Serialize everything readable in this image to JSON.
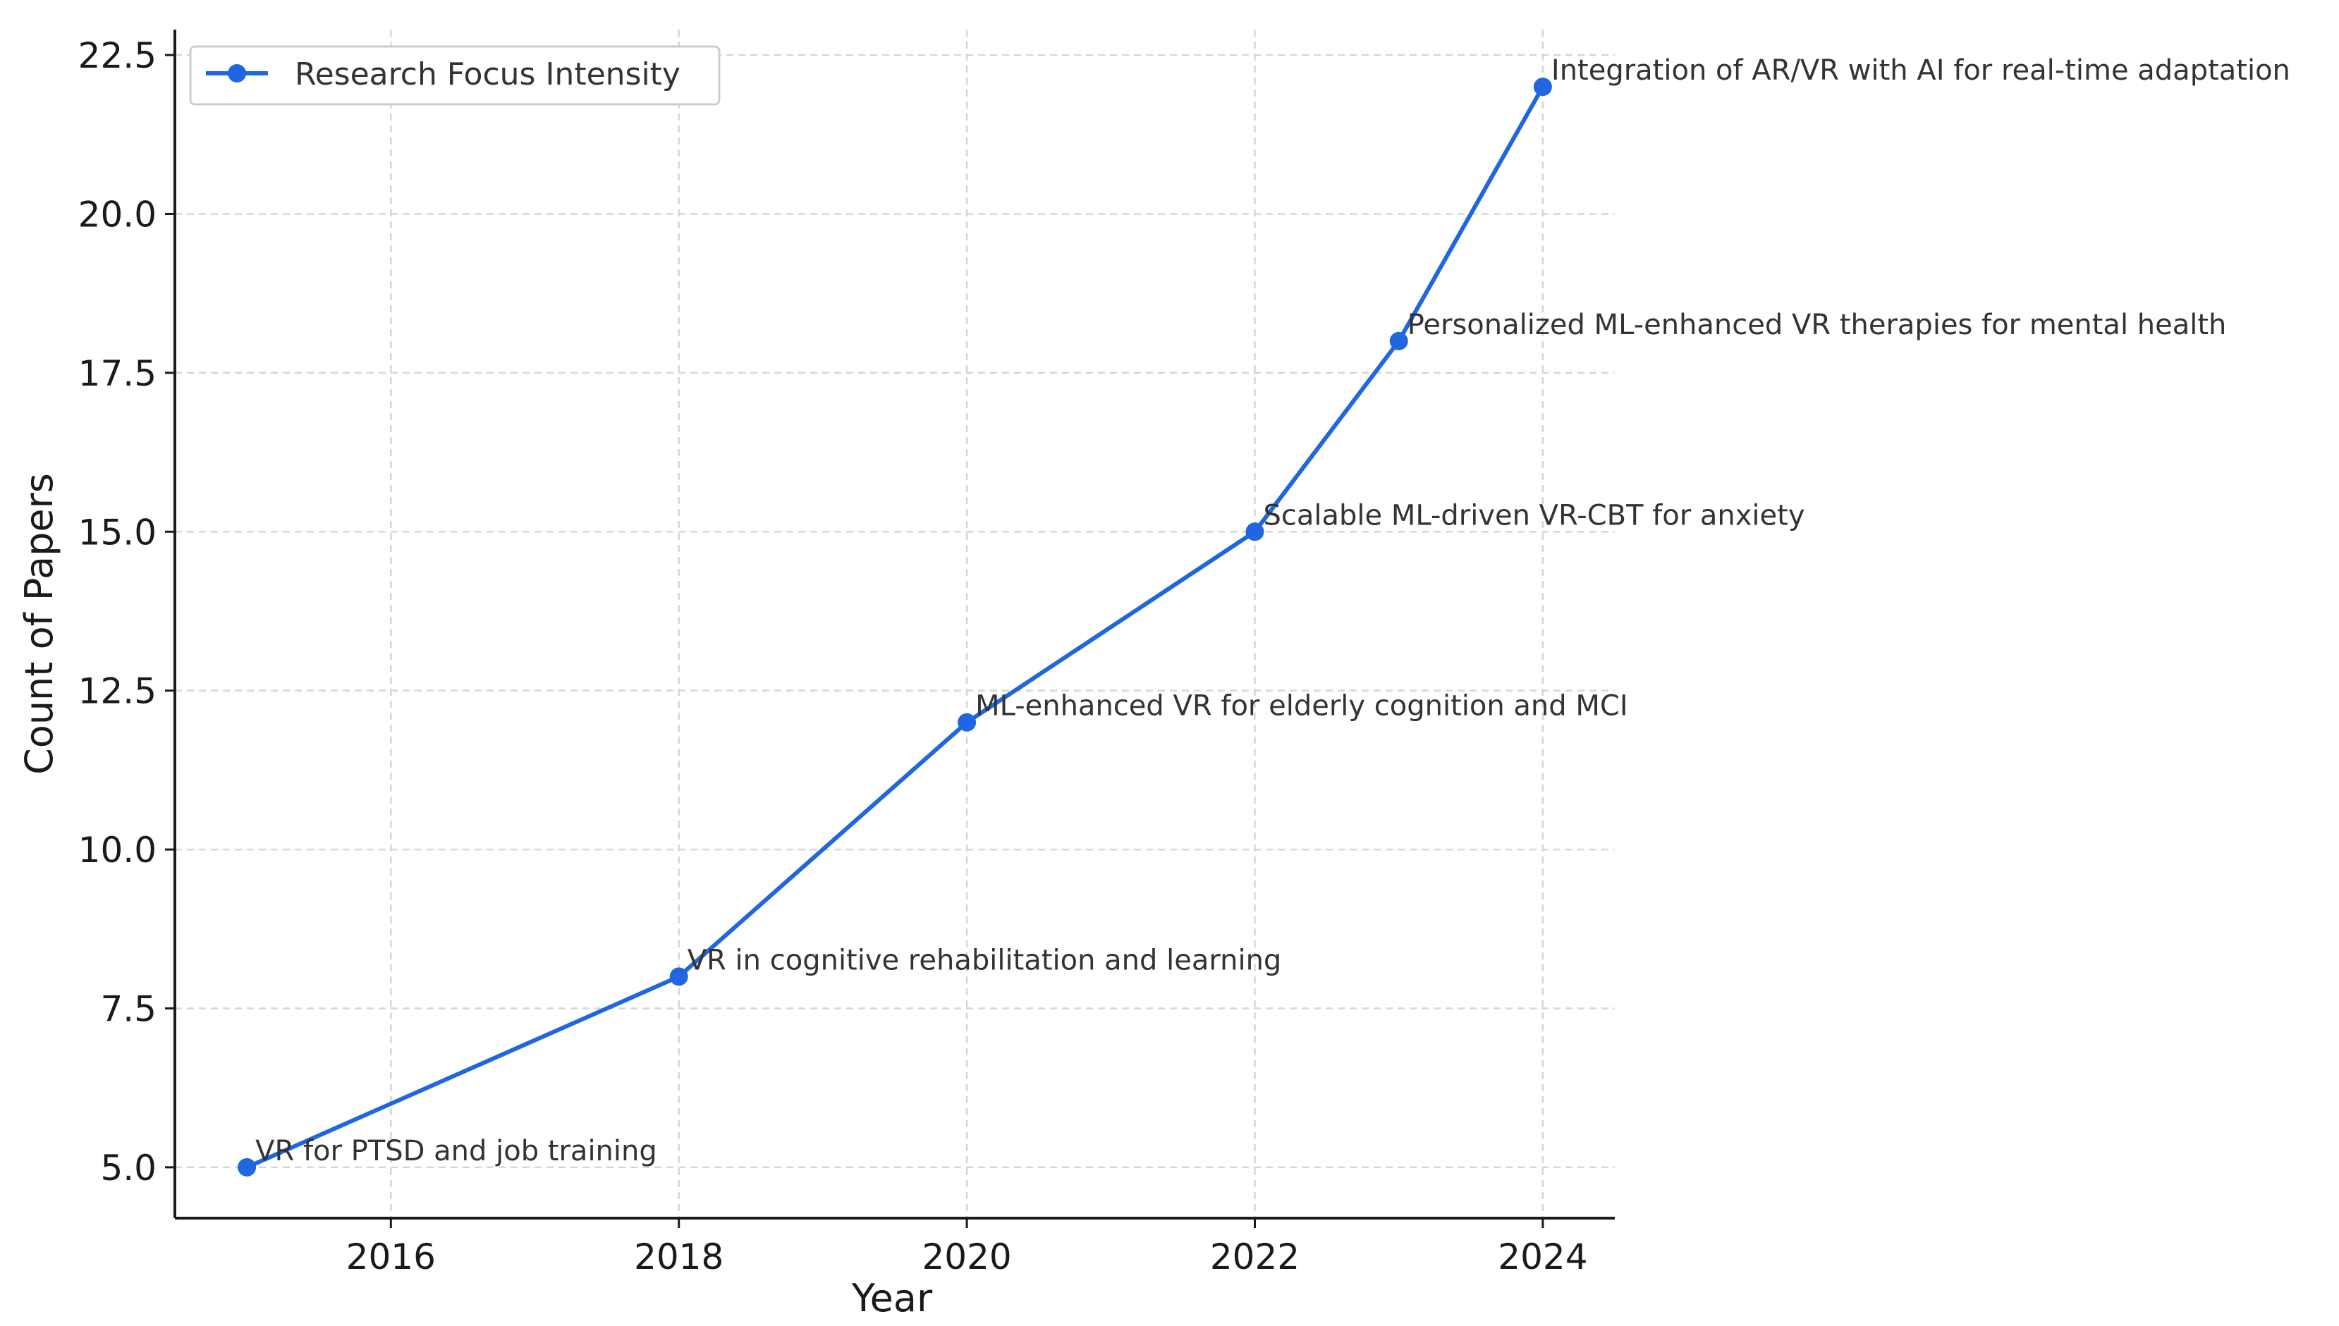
{
  "chart_data": {
    "type": "line",
    "title": "",
    "xlabel": "Year",
    "ylabel": "Count of Papers",
    "xlim": [
      2014.5,
      2024.5
    ],
    "ylim": [
      4.2,
      22.9
    ],
    "x_ticks": [
      2016,
      2018,
      2020,
      2022,
      2024
    ],
    "x_tick_labels": [
      "2016",
      "2018",
      "2020",
      "2022",
      "2024"
    ],
    "y_ticks": [
      5.0,
      7.5,
      10.0,
      12.5,
      15.0,
      17.5,
      20.0,
      22.5
    ],
    "y_tick_labels": [
      "5.0",
      "7.5",
      "10.0",
      "12.5",
      "15.0",
      "17.5",
      "20.0",
      "22.5"
    ],
    "grid": true,
    "legend_position": "top-left",
    "series": [
      {
        "name": "Research Focus Intensity",
        "color": "#1f66e0",
        "marker": "circle",
        "x": [
          2015,
          2018,
          2020,
          2022,
          2023,
          2024
        ],
        "y": [
          5,
          8,
          12,
          15,
          18,
          22
        ]
      }
    ],
    "annotations": [
      {
        "x": 2015,
        "y": 5,
        "text": "VR for PTSD and job training"
      },
      {
        "x": 2018,
        "y": 8,
        "text": "VR in cognitive rehabilitation and learning"
      },
      {
        "x": 2020,
        "y": 12,
        "text": "ML-enhanced VR for elderly cognition and MCI"
      },
      {
        "x": 2022,
        "y": 15,
        "text": "Scalable ML-driven VR-CBT for anxiety"
      },
      {
        "x": 2023,
        "y": 18,
        "text": "Personalized ML-enhanced VR therapies for mental health"
      },
      {
        "x": 2024,
        "y": 22,
        "text": "Integration of AR/VR with AI for real-time adaptation"
      }
    ]
  }
}
